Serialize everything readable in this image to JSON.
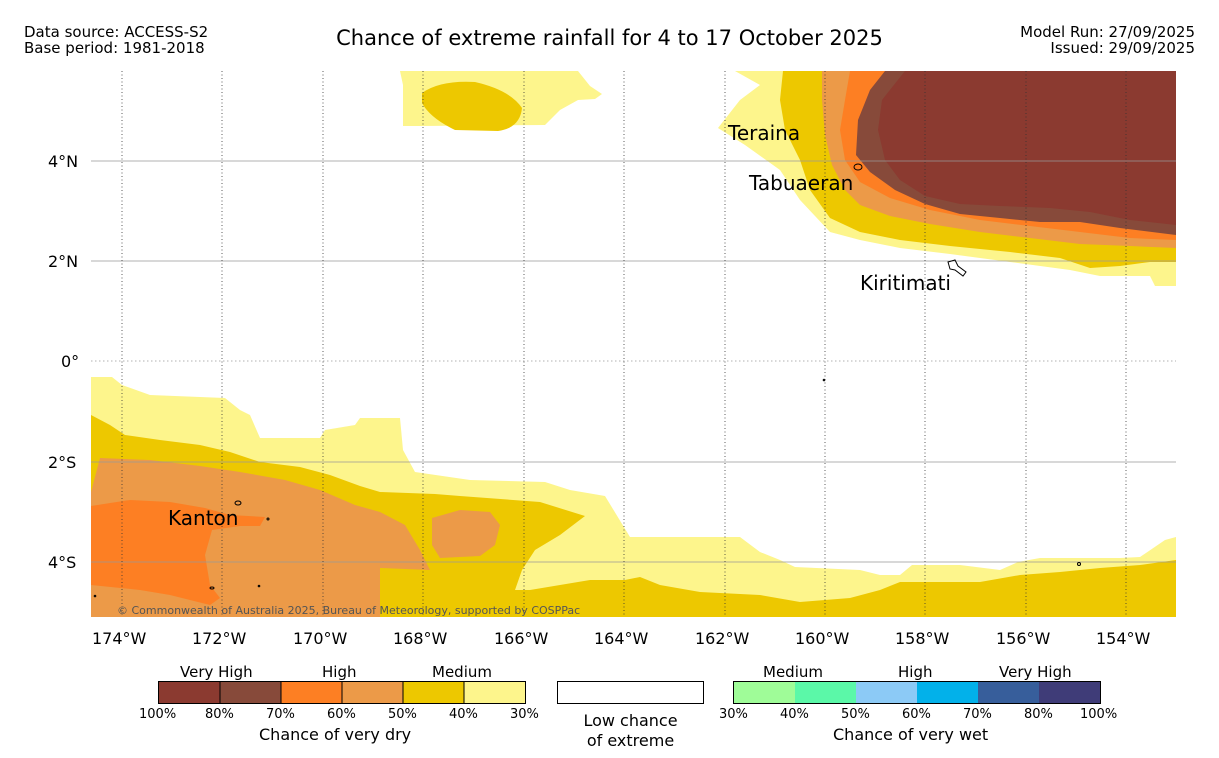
{
  "header": {
    "data_source": "Data source: ACCESS-S2",
    "base_period": "Base period: 1981-2018",
    "title": "Chance of extreme rainfall for 4 to 17 October 2025",
    "model_run": "Model Run: 27/09/2025",
    "issued": "Issued: 29/09/2025"
  },
  "map": {
    "lat_ticks": [
      "4°N",
      "2°N",
      "0°",
      "2°S",
      "4°S"
    ],
    "lon_ticks": [
      "174°W",
      "172°W",
      "170°W",
      "168°W",
      "166°W",
      "164°W",
      "162°W",
      "160°W",
      "158°W",
      "156°W",
      "154°W"
    ],
    "places": {
      "teraina": "Teraina",
      "tabuaeran": "Tabuaeran",
      "kiritimati": "Kiritimati",
      "kanton": "Kanton"
    },
    "copyright": "© Commonwealth of Australia 2025, Bureau of Meteorology, supported by COSPPac",
    "colors": {
      "dry_100_80": "#8b3a30",
      "dry_80_70": "#874a3a",
      "dry_70_60": "#fd7f23",
      "dry_60_50": "#ec9a48",
      "dry_50_40": "#edc800",
      "dry_40_30": "#fdf58c"
    }
  },
  "legend": {
    "dry": {
      "headings": [
        "Very High",
        "High",
        "Medium"
      ],
      "ticks": [
        "100%",
        "80%",
        "70%",
        "60%",
        "50%",
        "40%",
        "30%"
      ],
      "caption": "Chance of very dry",
      "colors": [
        "#8b3a30",
        "#874a3a",
        "#fd7f23",
        "#ec9a48",
        "#edc800",
        "#fdf58c"
      ]
    },
    "low": {
      "line1": "Low chance",
      "line2": "of extreme"
    },
    "wet": {
      "headings": [
        "Medium",
        "High",
        "Very High"
      ],
      "ticks": [
        "30%",
        "40%",
        "50%",
        "60%",
        "70%",
        "80%",
        "100%"
      ],
      "caption": "Chance of very wet",
      "colors": [
        "#9ffc98",
        "#5bf8a8",
        "#8ccaf6",
        "#02b1ea",
        "#375e9b",
        "#3f3c78"
      ]
    }
  }
}
